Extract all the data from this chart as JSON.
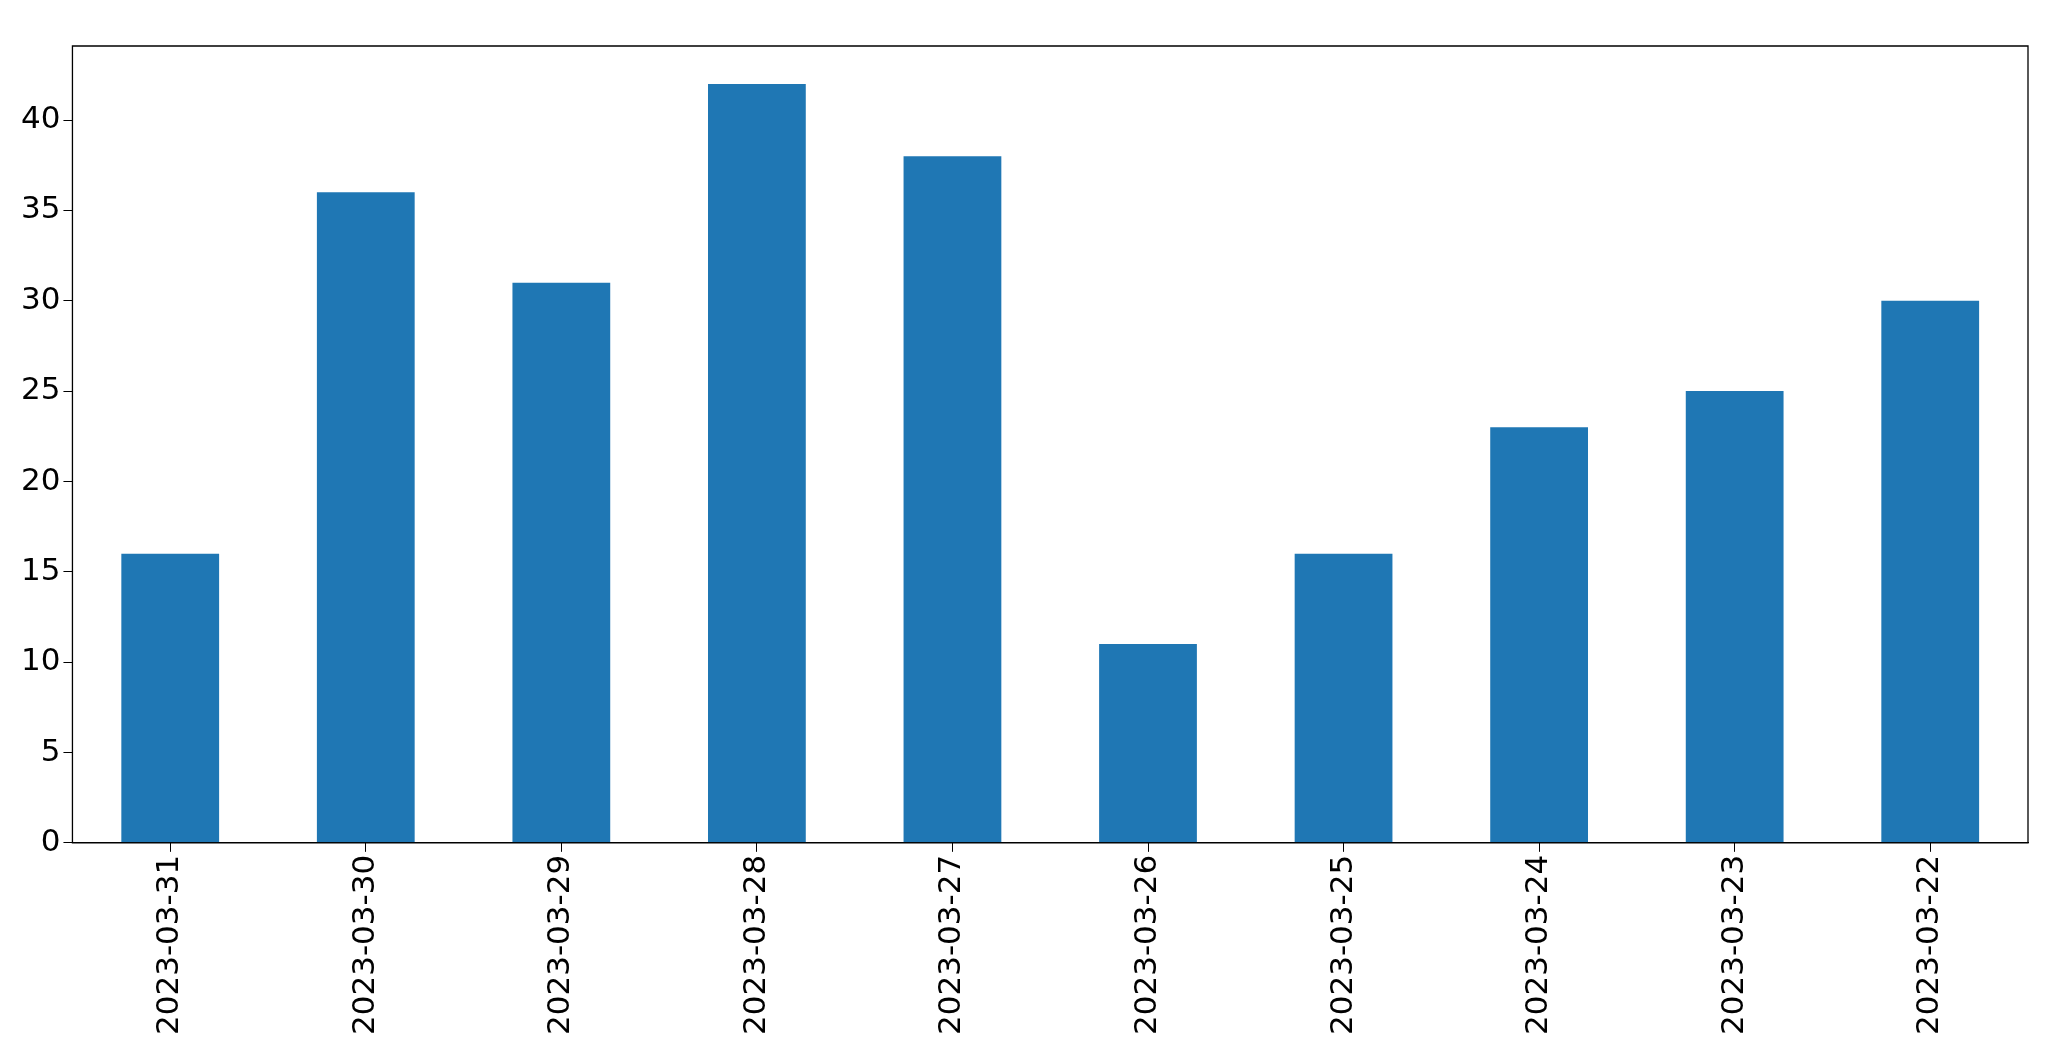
{
  "chart_data": {
    "type": "bar",
    "categories": [
      "2023-03-31",
      "2023-03-30",
      "2023-03-29",
      "2023-03-28",
      "2023-03-27",
      "2023-03-26",
      "2023-03-25",
      "2023-03-24",
      "2023-03-23",
      "2023-03-22"
    ],
    "values": [
      16,
      36,
      31,
      42,
      38,
      11,
      16,
      23,
      25,
      30
    ],
    "color": "#1f77b4",
    "ylim": [
      0,
      44.1
    ],
    "yticks": [
      0,
      5,
      10,
      15,
      20,
      25,
      30,
      35,
      40
    ],
    "grid": false
  }
}
